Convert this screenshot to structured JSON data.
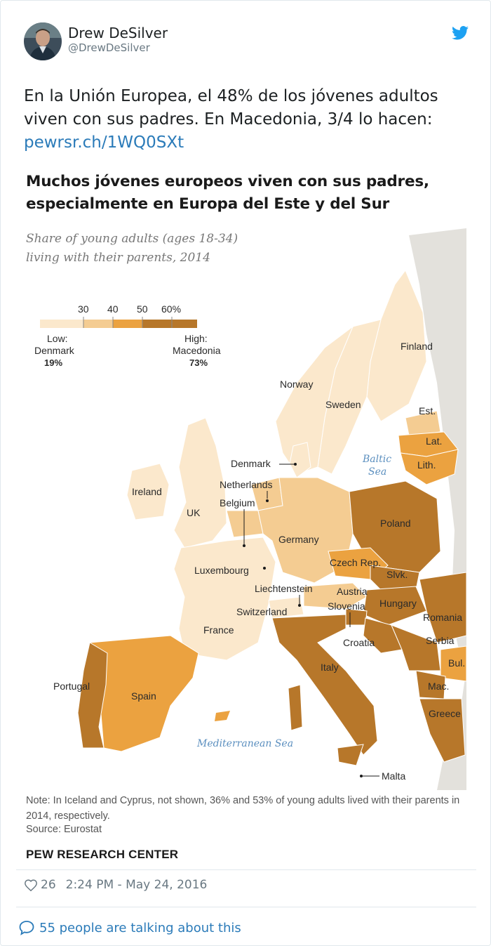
{
  "author": {
    "name": "Drew DeSilver",
    "handle": "@DrewDeSilver"
  },
  "tweet": {
    "line1": "En la Unión Europea, el 48% de los jóvenes adultos",
    "line2": "viven con sus padres. En Macedonia, 3/4 lo hacen:",
    "link": "pewrsr.ch/1WQ0SXt"
  },
  "media": {
    "title_line1": "Muchos jóvenes europeos viven con sus padres,",
    "title_line2": "especialmente en Europa del Este y del Sur",
    "subtitle_line1": "Share of young adults (ages 18-34)",
    "subtitle_line2": "living with their parents, 2014",
    "legend": {
      "ticks": [
        "30",
        "40",
        "50",
        "60%"
      ],
      "low_label": "Low:",
      "low_country": "Denmark",
      "low_value": "19%",
      "high_label": "High:",
      "high_country": "Macedonia",
      "high_value": "73%"
    },
    "seas": {
      "baltic_1": "Baltic",
      "baltic_2": "Sea",
      "mediterranean": "Mediterranean Sea"
    },
    "countries": {
      "finland": "Finland",
      "norway": "Norway",
      "sweden": "Sweden",
      "estonia": "Est.",
      "latvia": "Lat.",
      "lithuania": "Lith.",
      "denmark": "Denmark",
      "netherlands": "Netherlands",
      "belgium": "Belgium",
      "ireland": "Ireland",
      "uk": "UK",
      "poland": "Poland",
      "germany": "Germany",
      "czech": "Czech Rep.",
      "luxembourg": "Luxembourg",
      "slovakia": "Slvk.",
      "liechtenstein": "Liechtenstein",
      "austria": "Austria",
      "hungary": "Hungary",
      "switzerland": "Switzerland",
      "slovenia": "Slovenia",
      "romania": "Romania",
      "france": "France",
      "croatia": "Croatia",
      "serbia": "Serbia",
      "bulgaria": "Bul.",
      "italy": "Italy",
      "macedonia": "Mac.",
      "portugal": "Portugal",
      "spain": "Spain",
      "greece": "Greece",
      "malta": "Malta"
    },
    "note": "Note: In Iceland and Cyprus, not shown, 36% and 53% of young adults lived with their parents in 2014, respectively.",
    "source": "Source: Eurostat",
    "credit": "PEW RESEARCH CENTER"
  },
  "footer": {
    "likes": "26",
    "timestamp": "2:24 PM - May 24, 2016",
    "talking": "55 people are talking about this"
  },
  "colors": {
    "link": "#2b7bb9",
    "meta": "#697882",
    "scale_1": "#fbe8cc",
    "scale_2": "#f4cc92",
    "scale_3": "#eba240",
    "scale_4": "#b7772a"
  }
}
